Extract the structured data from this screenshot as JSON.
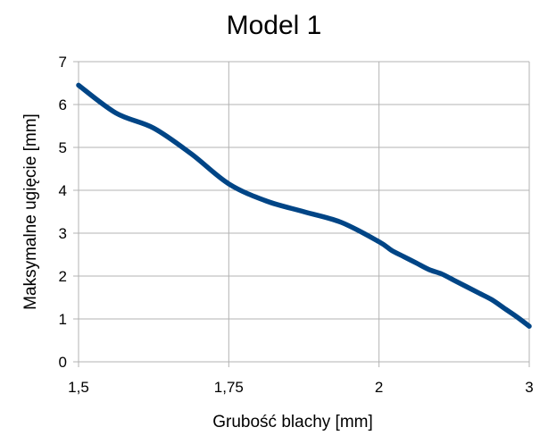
{
  "chart_data": {
    "type": "line",
    "title": "Model 1",
    "xlabel": "Grubość blachy [mm]",
    "ylabel": "Maksymalne ugięcie [mm]",
    "xlim": [
      1.5,
      3
    ],
    "ylim": [
      0,
      7
    ],
    "x_ticks": [
      1.5,
      1.75,
      2,
      3
    ],
    "x_tick_labels": [
      "1,5",
      "1,75",
      "2",
      "3"
    ],
    "y_ticks": [
      0,
      1,
      2,
      3,
      4,
      5,
      6,
      7
    ],
    "y_tick_labels": [
      "0",
      "1",
      "2",
      "3",
      "4",
      "5",
      "6",
      "7"
    ],
    "grid": true,
    "legend": false,
    "series": [
      {
        "color": "#004586",
        "x": [
          1.5,
          1.5625,
          1.625,
          1.6875,
          1.75,
          1.8125,
          1.875,
          1.9375,
          2.0,
          2.0833,
          2.1667,
          2.25,
          2.3333,
          2.4167,
          2.5,
          2.5833,
          2.6667,
          2.75,
          2.8333,
          2.9167,
          3.0
        ],
        "y": [
          6.45,
          5.8,
          5.45,
          4.85,
          4.15,
          3.75,
          3.5,
          3.25,
          2.8,
          2.6,
          2.45,
          2.3,
          2.15,
          2.05,
          1.9,
          1.75,
          1.6,
          1.45,
          1.25,
          1.05,
          0.83
        ]
      }
    ]
  }
}
